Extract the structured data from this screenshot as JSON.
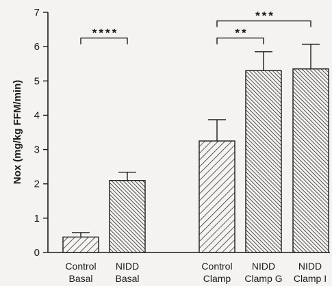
{
  "chart_data": {
    "type": "bar",
    "title": "",
    "xlabel": "",
    "ylabel": "Nox (mg/kg FFM/min)",
    "ylim": [
      0,
      7
    ],
    "yticks": [
      "0",
      "1",
      "2",
      "3",
      "4",
      "5",
      "6",
      "7"
    ],
    "grid": false,
    "categories": [
      {
        "line1": "Control",
        "line2": "Basal"
      },
      {
        "line1": "NIDD",
        "line2": "Basal"
      },
      {
        "line1": "Control",
        "line2": "Clamp"
      },
      {
        "line1": "NIDD",
        "line2": "Clamp G"
      },
      {
        "line1": "NIDD",
        "line2": "Clamp I"
      }
    ],
    "values": [
      0.45,
      2.1,
      3.25,
      5.3,
      5.35
    ],
    "errors": [
      0.13,
      0.24,
      0.62,
      0.55,
      0.72
    ],
    "patterns": [
      "sparse-hatch",
      "dense-hatch",
      "sparse-hatch",
      "dense-hatch",
      "dense-hatch"
    ],
    "significance": [
      {
        "from": 0,
        "to": 1,
        "label": "****",
        "level": 6.25
      },
      {
        "from": 2,
        "to": 3,
        "label": "**",
        "level": 6.25
      },
      {
        "from": 2,
        "to": 4,
        "label": "***",
        "level": 6.75
      }
    ],
    "colors": {
      "ink": "#1a1a1a",
      "background": "#f4f3f1"
    }
  }
}
